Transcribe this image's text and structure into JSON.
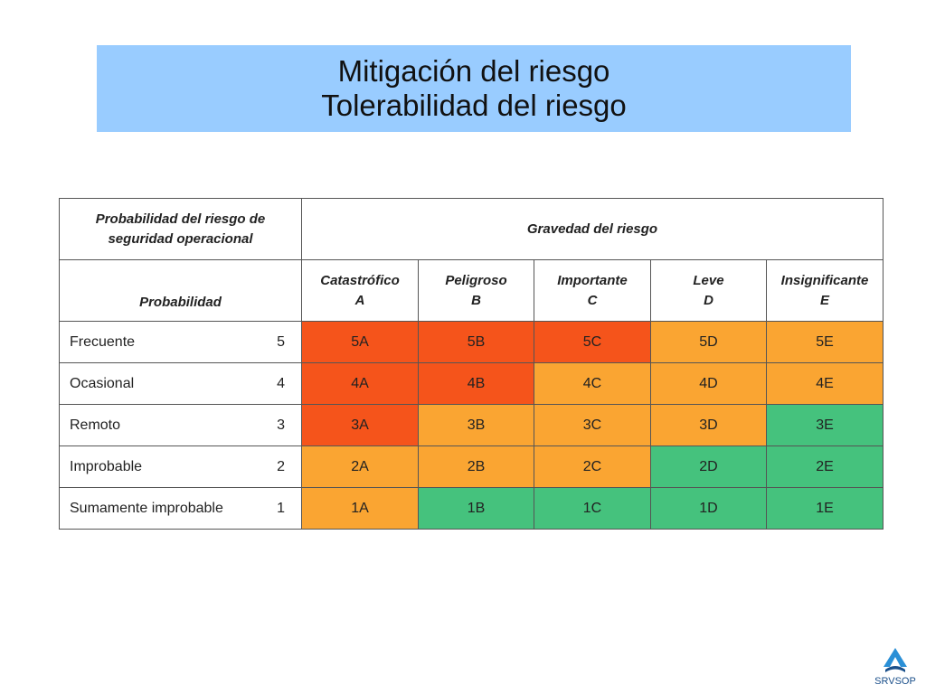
{
  "title": {
    "line1": "Mitigación del riesgo",
    "line2": "Tolerabilidad del riesgo"
  },
  "table": {
    "probability_header_line1": "Probabilidad del riesgo de",
    "probability_header_line2": "seguridad operacional",
    "severity_header": "Gravedad del riesgo",
    "probability_subheader": "Probabilidad",
    "severity_columns": [
      {
        "name": "Catastrófico",
        "letter": "A"
      },
      {
        "name": "Peligroso",
        "letter": "B"
      },
      {
        "name": "Importante",
        "letter": "C"
      },
      {
        "name": "Leve",
        "letter": "D"
      },
      {
        "name": "Insignificante",
        "letter": "E"
      }
    ],
    "rows": [
      {
        "label": "Frecuente",
        "value": "5",
        "cells": [
          "5A",
          "5B",
          "5C",
          "5D",
          "5E"
        ],
        "colors": [
          "red",
          "red",
          "red",
          "orange",
          "orange"
        ]
      },
      {
        "label": "Ocasional",
        "value": "4",
        "cells": [
          "4A",
          "4B",
          "4C",
          "4D",
          "4E"
        ],
        "colors": [
          "red",
          "red",
          "orange",
          "orange",
          "orange"
        ]
      },
      {
        "label": "Remoto",
        "value": "3",
        "cells": [
          "3A",
          "3B",
          "3C",
          "3D",
          "3E"
        ],
        "colors": [
          "red",
          "orange",
          "orange",
          "orange",
          "green"
        ]
      },
      {
        "label": "Improbable",
        "value": "2",
        "cells": [
          "2A",
          "2B",
          "2C",
          "2D",
          "2E"
        ],
        "colors": [
          "orange",
          "orange",
          "orange",
          "green",
          "green"
        ]
      },
      {
        "label": "Sumamente improbable",
        "value": "1",
        "cells": [
          "1A",
          "1B",
          "1C",
          "1D",
          "1E"
        ],
        "colors": [
          "orange",
          "green",
          "green",
          "green",
          "green"
        ]
      }
    ]
  },
  "colors": {
    "banner": "#99ccff",
    "red": "#f5541b",
    "orange": "#faa532",
    "green": "#45c27d"
  },
  "logo": {
    "text": "SRVSOP",
    "icon": "srvsop-logo-icon"
  }
}
